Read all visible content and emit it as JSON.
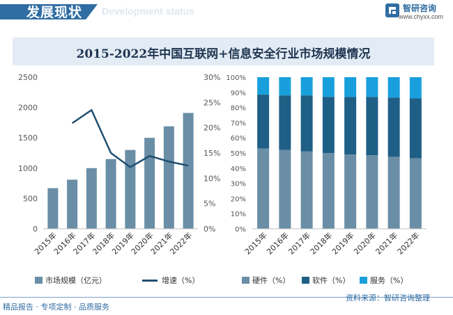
{
  "header": {
    "title": "发展现状",
    "subtitle": "Development status"
  },
  "brand": {
    "name": "智研咨询",
    "url": "www.chyxx.com"
  },
  "colors": {
    "bar": "#6a8ea6",
    "line": "#1f4e6f",
    "hardware": "#6a8ea6",
    "software": "#1f5f86",
    "service": "#19a0dc",
    "axis_text": "#555555"
  },
  "chart_data": [
    {
      "type": "bar+line",
      "title": "2015-2022年中国互联网+信息安全行业市场规模情况",
      "categories": [
        "2015年",
        "2016年",
        "2017年",
        "2018年",
        "2019年",
        "2020年",
        "2021年",
        "2022年"
      ],
      "series": [
        {
          "name": "市场规模（亿元）",
          "type": "bar",
          "axis": "left",
          "values": [
            670,
            810,
            1000,
            1150,
            1300,
            1500,
            1690,
            1910
          ]
        },
        {
          "name": "增速（%）",
          "type": "line",
          "axis": "right",
          "values": [
            null,
            20.9,
            23.5,
            15.0,
            12.2,
            14.4,
            13.3,
            12.5
          ]
        }
      ],
      "ylim_left": [
        0,
        2500
      ],
      "yticks_left": [
        "0",
        "500",
        "1000",
        "1500",
        "2000",
        "2500"
      ],
      "ylim_right": [
        0,
        30
      ],
      "yticks_right": [
        "0%",
        "5%",
        "10%",
        "15%",
        "20%",
        "25%",
        "30%"
      ]
    },
    {
      "type": "stacked-bar-100",
      "categories": [
        "2015年",
        "2016年",
        "2017年",
        "2018年",
        "2019年",
        "2020年",
        "2021年",
        "2022年"
      ],
      "series": [
        {
          "name": "硬件（%）",
          "values": [
            53,
            52,
            51,
            50,
            49,
            48.5,
            47.5,
            46.5
          ]
        },
        {
          "name": "软件（%）",
          "values": [
            35.5,
            36,
            37,
            37,
            38,
            38.5,
            39,
            39.5
          ]
        },
        {
          "name": "服务（%）",
          "values": [
            11.5,
            12,
            12,
            13,
            13,
            13,
            13.5,
            14
          ]
        }
      ],
      "ylim": [
        0,
        100
      ],
      "yticks": [
        "0%",
        "10%",
        "20%",
        "30%",
        "40%",
        "50%",
        "60%",
        "70%",
        "80%",
        "90%",
        "100%"
      ]
    }
  ],
  "legend": {
    "left_bar": "市场规模（亿元）",
    "left_line": "增速（%）",
    "hardware": "硬件（%）",
    "software": "软件（%）",
    "service": "服务（%）"
  },
  "footer": {
    "left": "精品报告 · 专项定制 · 品质服务",
    "source": "资料来源：智研咨询整理"
  }
}
